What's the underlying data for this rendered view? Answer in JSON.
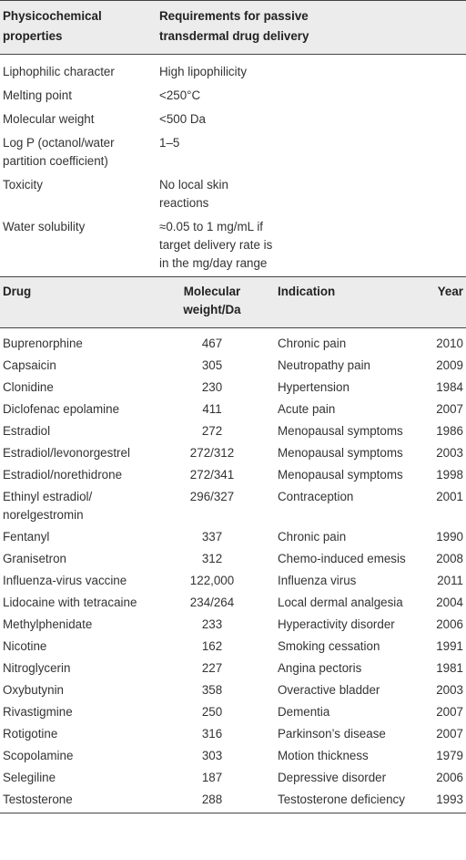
{
  "table1": {
    "headers": [
      "Physicochemical properties",
      "Requirements for passive transdermal drug delivery"
    ],
    "rows": [
      {
        "property": "Liphophilic character",
        "requirement": "High lipophilicity"
      },
      {
        "property": "Melting point",
        "requirement": "<250°C"
      },
      {
        "property": "Molecular weight",
        "requirement": "<500 Da"
      },
      {
        "property": "Log P (octanol/water partition coefficient)",
        "requirement": "1–5"
      },
      {
        "property": "Toxicity",
        "requirement": "No local skin reactions"
      },
      {
        "property": "Water solubility",
        "requirement": "≈0.05 to 1 mg/mL if target delivery rate is in the mg/day range"
      }
    ]
  },
  "table2": {
    "headers": [
      "Drug",
      "Molecular weight/Da",
      "Indication",
      "Year"
    ],
    "rows": [
      {
        "drug": "Buprenorphine",
        "mw": "467",
        "indication": "Chronic pain",
        "year": "2010"
      },
      {
        "drug": "Capsaicin",
        "mw": "305",
        "indication": "Neutropathy pain",
        "year": "2009"
      },
      {
        "drug": "Clonidine",
        "mw": "230",
        "indication": "Hypertension",
        "year": "1984"
      },
      {
        "drug": "Diclofenac epolamine",
        "mw": "411",
        "indication": "Acute pain",
        "year": "2007"
      },
      {
        "drug": "Estradiol",
        "mw": "272",
        "indication": "Menopausal symptoms",
        "year": "1986"
      },
      {
        "drug": "Estradiol/levonorgestrel",
        "mw": "272/312",
        "indication": "Menopausal symptoms",
        "year": "2003"
      },
      {
        "drug": "Estradiol/norethidrone",
        "mw": "272/341",
        "indication": "Menopausal symptoms",
        "year": "1998"
      },
      {
        "drug": "Ethinyl estradiol/ norelgestromin",
        "mw": "296/327",
        "indication": "Contraception",
        "year": "2001"
      },
      {
        "drug": "Fentanyl",
        "mw": "337",
        "indication": "Chronic pain",
        "year": "1990"
      },
      {
        "drug": "Granisetron",
        "mw": "312",
        "indication": "Chemo-induced emesis",
        "year": "2008"
      },
      {
        "drug": "Influenza-virus vaccine",
        "mw": "122,000",
        "indication": "Influenza virus",
        "year": "2011"
      },
      {
        "drug": "Lidocaine with tetracaine",
        "mw": "234/264",
        "indication": "Local dermal analgesia",
        "year": "2004"
      },
      {
        "drug": "Methylphenidate",
        "mw": "233",
        "indication": "Hyperactivity disorder",
        "year": "2006"
      },
      {
        "drug": "Nicotine",
        "mw": "162",
        "indication": "Smoking cessation",
        "year": "1991"
      },
      {
        "drug": "Nitroglycerin",
        "mw": "227",
        "indication": "Angina pectoris",
        "year": "1981"
      },
      {
        "drug": "Oxybutynin",
        "mw": "358",
        "indication": "Overactive bladder",
        "year": "2003"
      },
      {
        "drug": "Rivastigmine",
        "mw": "250",
        "indication": "Dementia",
        "year": "2007"
      },
      {
        "drug": "Rotigotine",
        "mw": "316",
        "indication": "Parkinson’s disease",
        "year": "2007"
      },
      {
        "drug": "Scopolamine",
        "mw": "303",
        "indication": "Motion thickness",
        "year": "1979"
      },
      {
        "drug": "Selegiline",
        "mw": "187",
        "indication": "Depressive disorder",
        "year": "2006"
      },
      {
        "drug": "Testosterone",
        "mw": "288",
        "indication": "Testosterone deficiency",
        "year": "1993"
      }
    ]
  }
}
